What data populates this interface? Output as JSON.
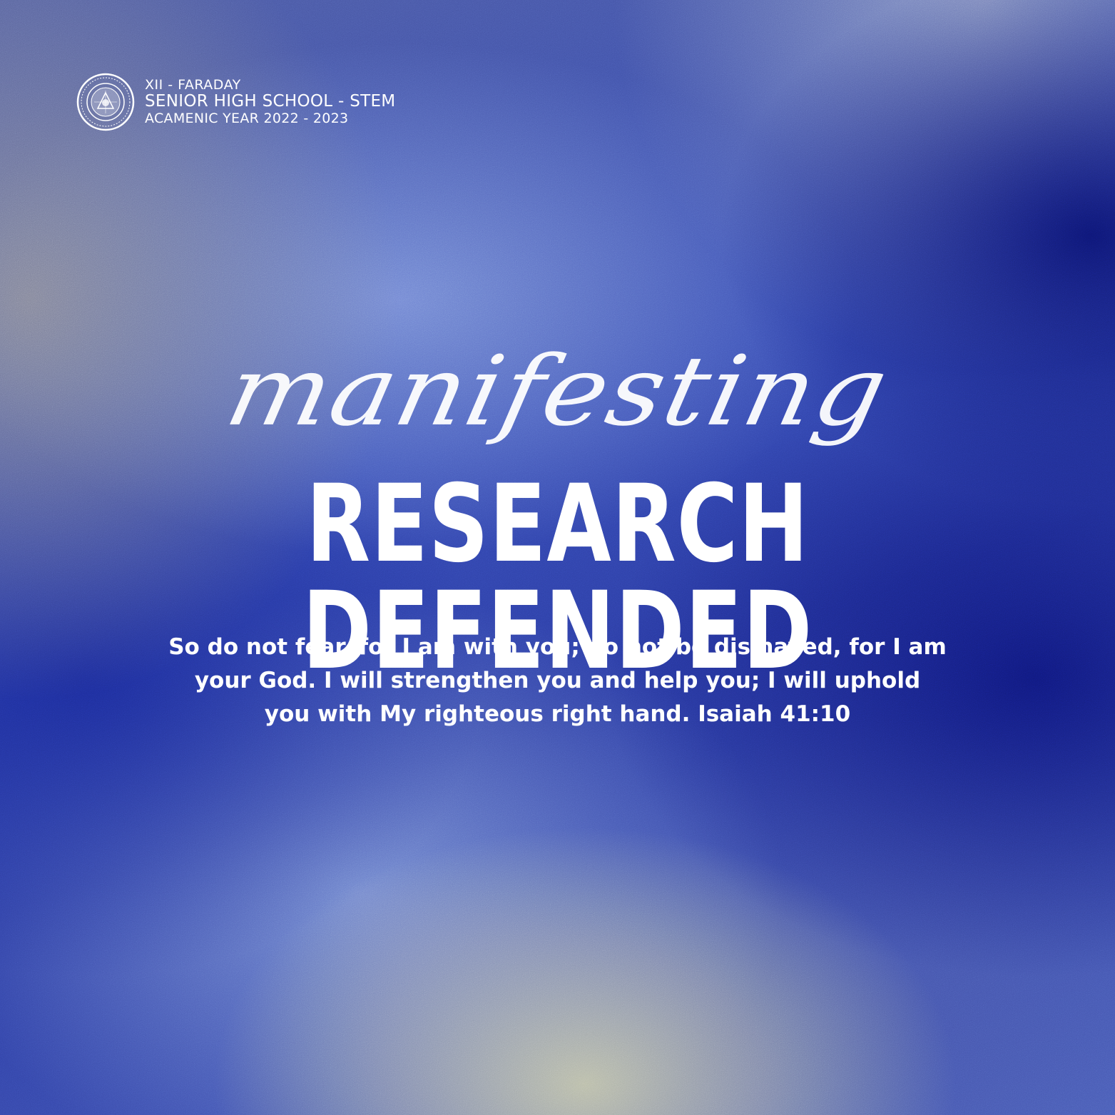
{
  "header": {
    "class_name": "XII - FARADAY",
    "school_strand": "SENIOR HIGH SCHOOL - STEM",
    "academic_year": "ACAMENIC YEAR 2022 - 2023",
    "seal_icon": "school-seal-icon"
  },
  "title": {
    "script_word": "manifesting",
    "main": "RESEARCH DEFENDED"
  },
  "verse": {
    "line1": "So do not fear, for I am with you; do not be dismayed, for I am",
    "line2": "your God. I will strengthen you and help you; I will uphold",
    "line3": "you with My righteous right hand. Isaiah 41:10"
  },
  "colors": {
    "text": "#ffffff",
    "deep_blue": "#0e1676",
    "royal_blue": "#3448b0",
    "warm_light": "#cdcda5"
  }
}
